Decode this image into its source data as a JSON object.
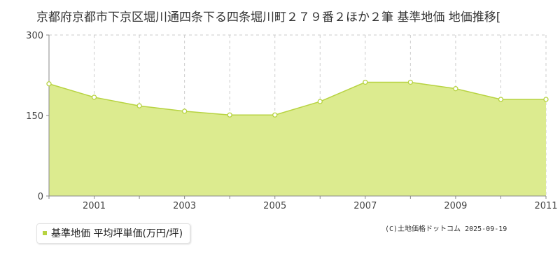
{
  "title": "京都府京都市下京区堀川通四条下る四条堀川町２７９番２ほか２筆 基準地価 地価推移[",
  "legend": {
    "label": "基準地価 平均坪単価(万円/坪)"
  },
  "copyright": "(C)土地価格ドットコム 2025-09-19",
  "colors": {
    "fill": "#dceb8f",
    "line": "#b7d341",
    "grid": "#cccccc",
    "axis": "#888888",
    "point_fill": "#ffffff"
  },
  "chart_data": {
    "type": "area",
    "x": [
      2000,
      2001,
      2002,
      2003,
      2004,
      2005,
      2006,
      2007,
      2008,
      2009,
      2010,
      2011
    ],
    "series": [
      {
        "name": "基準地価 平均坪単価(万円/坪)",
        "values": [
          209,
          184,
          168,
          158,
          151,
          151,
          176,
          212,
          212,
          200,
          180,
          180
        ]
      }
    ],
    "x_tick_labels": [
      "2001",
      "2003",
      "2005",
      "2007",
      "2009",
      "2011"
    ],
    "y_ticks": [
      "0",
      "150",
      "300"
    ],
    "ylim": [
      0,
      300
    ],
    "xlim": [
      2000,
      2011
    ],
    "grid": true
  }
}
